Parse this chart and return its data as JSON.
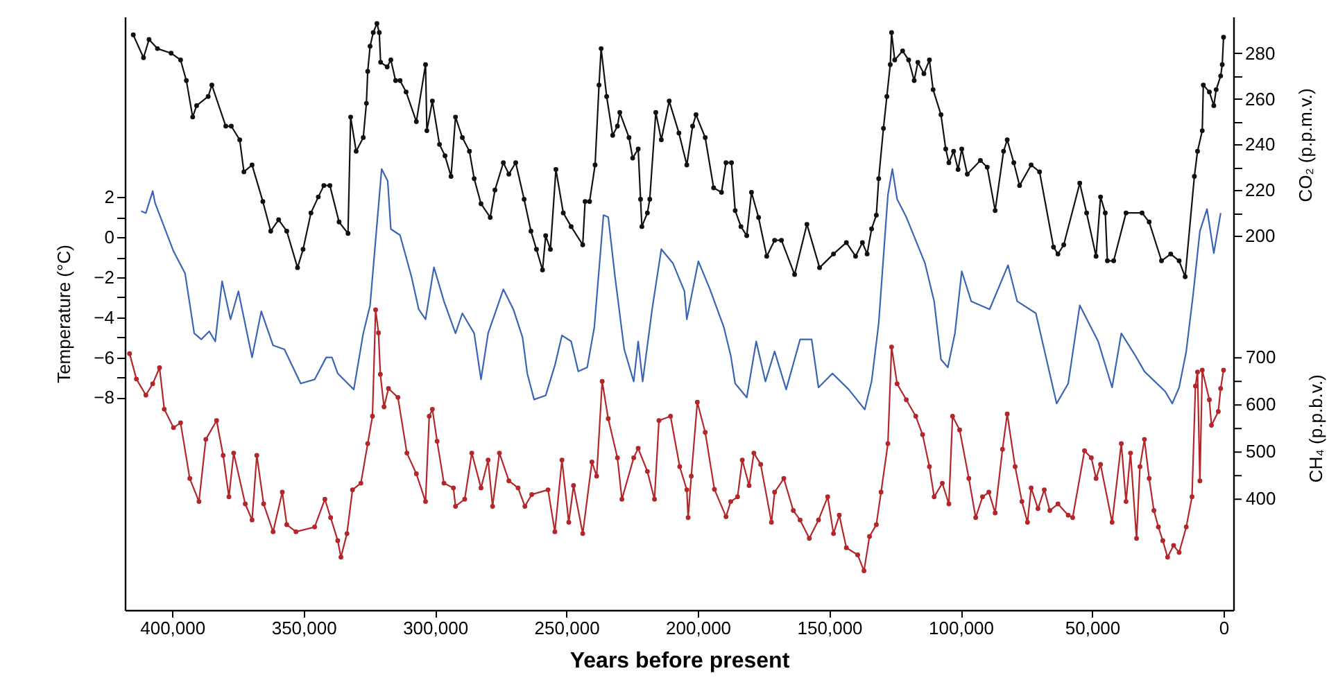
{
  "chart_data": {
    "type": "line",
    "xlabel": "Years before present",
    "ylabel": "Temperature (°C)",
    "y2label": "CO₂ (p.p.m.v.)",
    "y3label": "CH₄ (p.p.b.v.)",
    "xlim": [
      418000,
      -3700
    ],
    "xticks": [
      {
        "value": 400000,
        "label": "400,000"
      },
      {
        "value": 350000,
        "label": "350,000"
      },
      {
        "value": 300000,
        "label": "300,000"
      },
      {
        "value": 250000,
        "label": "250,000"
      },
      {
        "value": 200000,
        "label": "200,000"
      },
      {
        "value": 150000,
        "label": "150,000"
      },
      {
        "value": 100000,
        "label": "100,000"
      },
      {
        "value": 50000,
        "label": "50,000"
      },
      0
    ],
    "ylim": [
      -18.6,
      11.0
    ],
    "yticks": [
      2,
      {
        "value": 1,
        "label": null
      },
      0,
      {
        "value": -1,
        "label": null
      },
      -2,
      {
        "value": -3,
        "label": null
      },
      -4,
      {
        "value": -5,
        "label": null
      },
      -6,
      {
        "value": -7,
        "label": null
      },
      -8
    ],
    "y2lim": [
      36,
      296
    ],
    "y2ticks": [
      280,
      {
        "value": 270,
        "label": null
      },
      260,
      {
        "value": 250,
        "label": null
      },
      240,
      {
        "value": 230,
        "label": null
      },
      220,
      {
        "value": 210,
        "label": null
      },
      200
    ],
    "y3lim": [
      165,
      1424
    ],
    "y3ticks": [
      700,
      {
        "value": 650,
        "label": null
      },
      600,
      {
        "value": 550,
        "label": null
      },
      500,
      {
        "value": 450,
        "label": null
      },
      400
    ],
    "series": [
      {
        "color": "#111111",
        "axis": "y2",
        "marker": "circle",
        "x": [
          414800,
          410900,
          408800,
          405600,
          400400,
          396800,
          394600,
          392200,
          390700,
          386300,
          384900,
          379600,
          377500,
          374300,
          372700,
          369600,
          365500,
          362500,
          359500,
          356400,
          352300,
          350200,
          347200,
          344400,
          342300,
          340000,
          336500,
          333100,
          332100,
          330000,
          327300,
          326100,
          325600,
          324700,
          323500,
          322100,
          321200,
          320700,
          318200,
          316800,
          315000,
          313300,
          311000,
          307100,
          303600,
          303100,
          301000,
          298300,
          296200,
          293900,
          292200,
          289600,
          286900,
          285100,
          282500,
          279000,
          277200,
          274000,
          271900,
          269300,
          266100,
          263500,
          261400,
          259100,
          257900,
          256100,
          254000,
          251200,
          248200,
          243800,
          242900,
          241200,
          239100,
          237600,
          236800,
          234700,
          232400,
          230600,
          229700,
          226200,
          224800,
          222700,
          221800,
          221300,
          219200,
          218300,
          216000,
          213900,
          210900,
          207200,
          204200,
          202000,
          200700,
          197200,
          194000,
          191000,
          189300,
          187200,
          185800,
          183600,
          181400,
          179600,
          176900,
          173800,
          170800,
          168200,
          163200,
          158500,
          153700,
          148400,
          143500,
          140000,
          137400,
          135600,
          133900,
          132100,
          131200,
          129400,
          128100,
          126800,
          126300,
          125100,
          122100,
          119800,
          117700,
          116300,
          114000,
          111900,
          110500,
          107500,
          105700,
          104500,
          102700,
          101000,
          99600,
          97500,
          92500,
          89900,
          86900,
          83700,
          82300,
          79800,
          77600,
          73200,
          70000,
          64700,
          63000,
          60800,
          54700,
          52100,
          48500,
          46800,
          45000,
          44200,
          41800,
          37100,
          31000,
          28300,
          23600,
          20100,
          16900,
          14600,
          11100,
          9900,
          8100,
          7700,
          5400,
          3700,
          2800,
          1100,
          500,
          0
        ],
        "values": [
          288,
          278,
          286,
          282,
          280,
          277,
          268,
          252,
          257,
          261,
          266,
          248,
          248,
          242,
          228,
          231,
          215,
          202,
          207,
          202,
          186,
          194,
          210,
          217,
          222,
          222,
          206,
          201,
          252,
          237,
          243,
          258,
          272,
          283,
          289,
          293,
          289,
          276,
          274,
          277,
          268,
          268,
          263,
          250,
          275,
          246,
          259,
          240,
          235,
          226,
          252,
          243,
          237,
          225,
          214,
          208,
          220,
          232,
          227,
          232,
          216,
          202,
          194,
          185,
          200,
          194,
          229,
          210,
          204,
          196,
          215,
          215,
          231,
          266,
          282,
          261,
          244,
          248,
          254,
          243,
          234,
          238,
          216,
          204,
          210,
          216,
          254,
          242,
          259,
          245,
          231,
          248,
          253,
          243,
          221,
          219,
          232,
          232,
          211,
          204,
          200,
          219,
          208,
          191,
          198,
          198,
          183,
          205,
          186,
          192,
          197,
          191,
          197,
          192,
          203,
          209,
          225,
          247,
          261,
          275,
          289,
          277,
          281,
          277,
          268,
          276,
          271,
          277,
          264,
          253,
          238,
          232,
          237,
          229,
          238,
          227,
          233,
          230,
          211,
          237,
          242,
          232,
          222,
          231,
          228,
          195,
          192,
          196,
          223,
          210,
          191,
          217,
          210,
          189,
          189,
          210,
          210,
          206,
          189,
          192,
          189,
          182,
          226,
          237,
          246,
          266,
          263,
          257,
          264,
          270,
          275,
          287
        ]
      },
      {
        "color": "#3a64b4",
        "axis": "y",
        "marker": "none",
        "x": [
          411800,
          410000,
          407400,
          406500,
          399500,
          395100,
          391600,
          388900,
          385900,
          383600,
          381000,
          377800,
          374800,
          369600,
          366100,
          361600,
          357300,
          351100,
          345800,
          341400,
          339200,
          337000,
          330900,
          327300,
          324700,
          320300,
          318000,
          316800,
          313300,
          308900,
          306200,
          303600,
          300400,
          296600,
          292200,
          289600,
          285100,
          282500,
          279800,
          274000,
          270200,
          266700,
          264900,
          262300,
          257900,
          254400,
          251700,
          248200,
          245500,
          242100,
          239400,
          235900,
          234100,
          231500,
          228000,
          224400,
          222700,
          221000,
          217400,
          213900,
          209500,
          205100,
          204200,
          199800,
          195400,
          190100,
          187500,
          185800,
          181400,
          177800,
          174300,
          170800,
          166400,
          161100,
          156700,
          154100,
          148800,
          142600,
          136500,
          133900,
          131200,
          127700,
          126000,
          124200,
          120700,
          113600,
          110100,
          107500,
          104900,
          102200,
          99600,
          96000,
          89000,
          82000,
          78500,
          71400,
          63500,
          59100,
          54700,
          47700,
          42400,
          38900,
          33600,
          30100,
          22200,
          19500,
          16900,
          14200,
          11600,
          9000,
          6300,
          3700,
          1100
        ],
        "values": [
          1.3,
          1.2,
          2.3,
          1.7,
          -0.7,
          -1.8,
          -4.8,
          -5.1,
          -4.7,
          -5.2,
          -2.2,
          -4.1,
          -2.7,
          -6.0,
          -3.7,
          -5.4,
          -5.6,
          -7.3,
          -7.1,
          -6.0,
          -6.0,
          -6.8,
          -7.6,
          -4.8,
          -3.4,
          3.4,
          2.8,
          0.4,
          0.1,
          -2.0,
          -3.6,
          -4.1,
          -1.5,
          -3.2,
          -4.8,
          -3.8,
          -4.8,
          -7.1,
          -4.8,
          -2.6,
          -3.6,
          -5.0,
          -6.8,
          -8.1,
          -7.9,
          -6.4,
          -4.9,
          -5.2,
          -6.7,
          -6.5,
          -4.5,
          1.1,
          1.0,
          -2.0,
          -5.6,
          -7.2,
          -5.2,
          -7.2,
          -3.6,
          -0.6,
          -1.3,
          -2.7,
          -4.1,
          -1.2,
          -2.6,
          -4.5,
          -5.9,
          -7.3,
          -8.0,
          -5.2,
          -7.2,
          -5.7,
          -7.6,
          -5.1,
          -5.1,
          -7.5,
          -6.8,
          -7.6,
          -8.6,
          -7.2,
          -4.3,
          2.1,
          3.4,
          1.9,
          1.0,
          -1.3,
          -3.2,
          -6.1,
          -6.5,
          -4.8,
          -1.7,
          -3.2,
          -3.6,
          -1.4,
          -3.2,
          -3.8,
          -8.3,
          -7.3,
          -3.4,
          -5.2,
          -7.5,
          -4.8,
          -5.9,
          -6.7,
          -7.7,
          -8.3,
          -7.5,
          -5.7,
          -2.9,
          0.3,
          1.4,
          -0.8,
          1.2
        ]
      },
      {
        "color": "#b3262a",
        "axis": "y3",
        "marker": "circle",
        "x": [
          416200,
          413600,
          410000,
          407400,
          404800,
          403000,
          399500,
          396800,
          393300,
          389800,
          387200,
          383100,
          380600,
          378400,
          376600,
          372200,
          369600,
          367800,
          365200,
          361600,
          358100,
          356400,
          352900,
          345800,
          341900,
          339700,
          337000,
          335800,
          333500,
          331400,
          328200,
          325600,
          323800,
          322600,
          321500,
          320800,
          319400,
          317700,
          314100,
          310700,
          307100,
          303600,
          302200,
          301000,
          299200,
          296600,
          293000,
          292200,
          288700,
          286000,
          282500,
          279800,
          278100,
          275500,
          271900,
          268400,
          265800,
          263200,
          257000,
          254400,
          251700,
          249100,
          247300,
          243800,
          240300,
          238500,
          236400,
          234100,
          230600,
          228900,
          224400,
          222700,
          219200,
          216500,
          214800,
          210400,
          206900,
          204200,
          203700,
          202500,
          200200,
          197200,
          193700,
          189300,
          187500,
          184900,
          183100,
          180500,
          178700,
          176100,
          172000,
          170800,
          167300,
          163700,
          161100,
          157600,
          154100,
          150600,
          148400,
          146200,
          143500,
          139200,
          136800,
          134700,
          132100,
          130300,
          127700,
          126300,
          124200,
          120700,
          117100,
          114500,
          111900,
          110100,
          107000,
          104500,
          103100,
          100400,
          96900,
          94300,
          91700,
          89300,
          86900,
          84100,
          82300,
          79300,
          76700,
          74600,
          73200,
          70600,
          68200,
          66100,
          63000,
          59100,
          57400,
          52900,
          50300,
          48500,
          46800,
          42400,
          38900,
          37100,
          35400,
          33100,
          31800,
          30100,
          28300,
          26500,
          24800,
          23100,
          21300,
          19000,
          16900,
          14200,
          12000,
          10700,
          9900,
          9000,
          8100,
          5400,
          4600,
          2000,
          1100,
          0
        ],
        "values": [
          709,
          655,
          621,
          645,
          679,
          591,
          552,
          562,
          444,
          395,
          527,
          567,
          493,
          405,
          498,
          390,
          356,
          493,
          390,
          331,
          415,
          346,
          331,
          341,
          400,
          361,
          312,
          277,
          327,
          420,
          434,
          518,
          576,
          802,
          753,
          665,
          596,
          635,
          616,
          498,
          454,
          395,
          576,
          591,
          523,
          434,
          424,
          385,
          400,
          498,
          424,
          483,
          385,
          498,
          439,
          424,
          385,
          410,
          420,
          331,
          483,
          351,
          429,
          327,
          479,
          449,
          650,
          571,
          488,
          400,
          488,
          508,
          459,
          400,
          567,
          576,
          469,
          420,
          361,
          449,
          606,
          542,
          421,
          363,
          395,
          405,
          483,
          429,
          498,
          474,
          351,
          415,
          444,
          376,
          356,
          317,
          356,
          405,
          327,
          366,
          297,
          282,
          248,
          321,
          346,
          415,
          518,
          723,
          645,
          611,
          576,
          537,
          469,
          405,
          434,
          390,
          576,
          547,
          444,
          361,
          405,
          415,
          371,
          506,
          581,
          469,
          395,
          351,
          424,
          380,
          420,
          376,
          390,
          366,
          361,
          503,
          488,
          444,
          474,
          351,
          518,
          395,
          498,
          317,
          469,
          527,
          444,
          376,
          341,
          312,
          277,
          302,
          287,
          341,
          405,
          640,
          670,
          439,
          674,
          611,
          557,
          586,
          635,
          674
        ]
      }
    ]
  }
}
